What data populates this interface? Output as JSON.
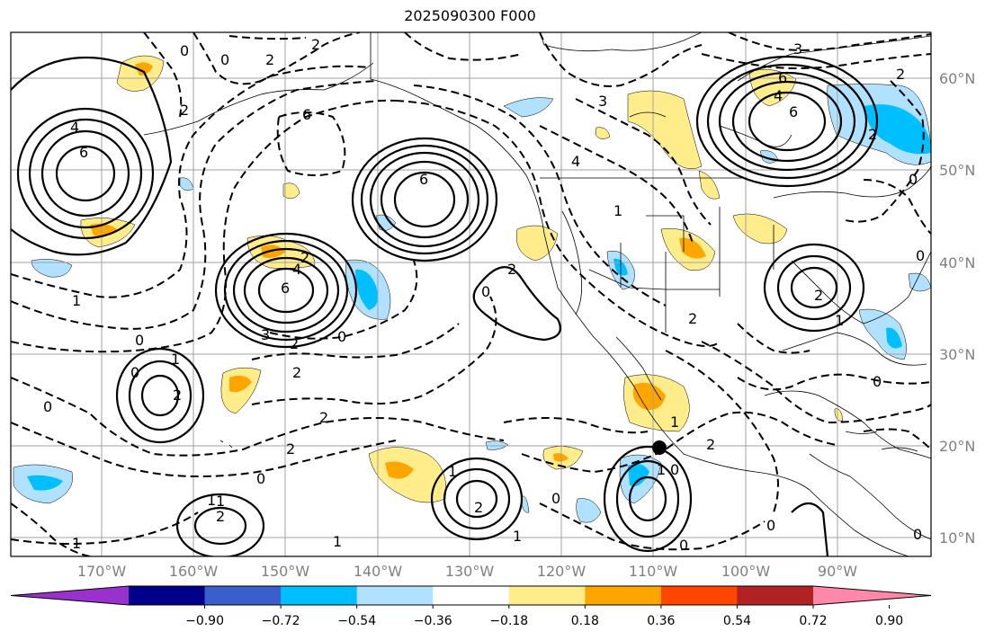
{
  "title": "2025090300 F000",
  "lat_labels": [
    "60°N",
    "50°N",
    "40°N",
    "30°N",
    "20°N",
    "10°N"
  ],
  "lon_labels": [
    "170°W",
    "160°W",
    "150°W",
    "140°W",
    "130°W",
    "120°W",
    "110°W",
    "100°W",
    "90°W"
  ],
  "colorbar": {
    "colors": [
      "#9932cc",
      "#00008b",
      "#3a5fcd",
      "#00bfff",
      "#b0e2ff",
      "#ffffff",
      "#ffec8b",
      "#ffa500",
      "#ff4500",
      "#b22222",
      "#ff88aa"
    ],
    "tick_labels": [
      "−0.90",
      "−0.72",
      "−0.54",
      "−0.36",
      "−0.18",
      "0.18",
      "0.36",
      "0.54",
      "0.72",
      "0.90"
    ]
  },
  "contour_labels": {
    "pos": [
      "4",
      "6",
      "6",
      "4",
      "2",
      "6",
      "3",
      "2",
      "6",
      "4",
      "6",
      "2",
      "1",
      "2",
      "1",
      "2",
      "1",
      "1",
      "2",
      "1",
      "1",
      "2",
      "1"
    ],
    "neg": [
      "0",
      "0",
      "2",
      "2",
      "2",
      "3",
      "2",
      "2",
      "6",
      "0",
      "3",
      "4",
      "1",
      "0",
      "0",
      "2",
      "2",
      "0",
      "0",
      "0",
      "2",
      "1",
      "1",
      "0",
      "0",
      "0",
      "0",
      "2",
      "2",
      "0",
      "0",
      "1",
      "0",
      "0",
      "1"
    ]
  },
  "marker": {
    "label": "storm-center-marker"
  }
}
